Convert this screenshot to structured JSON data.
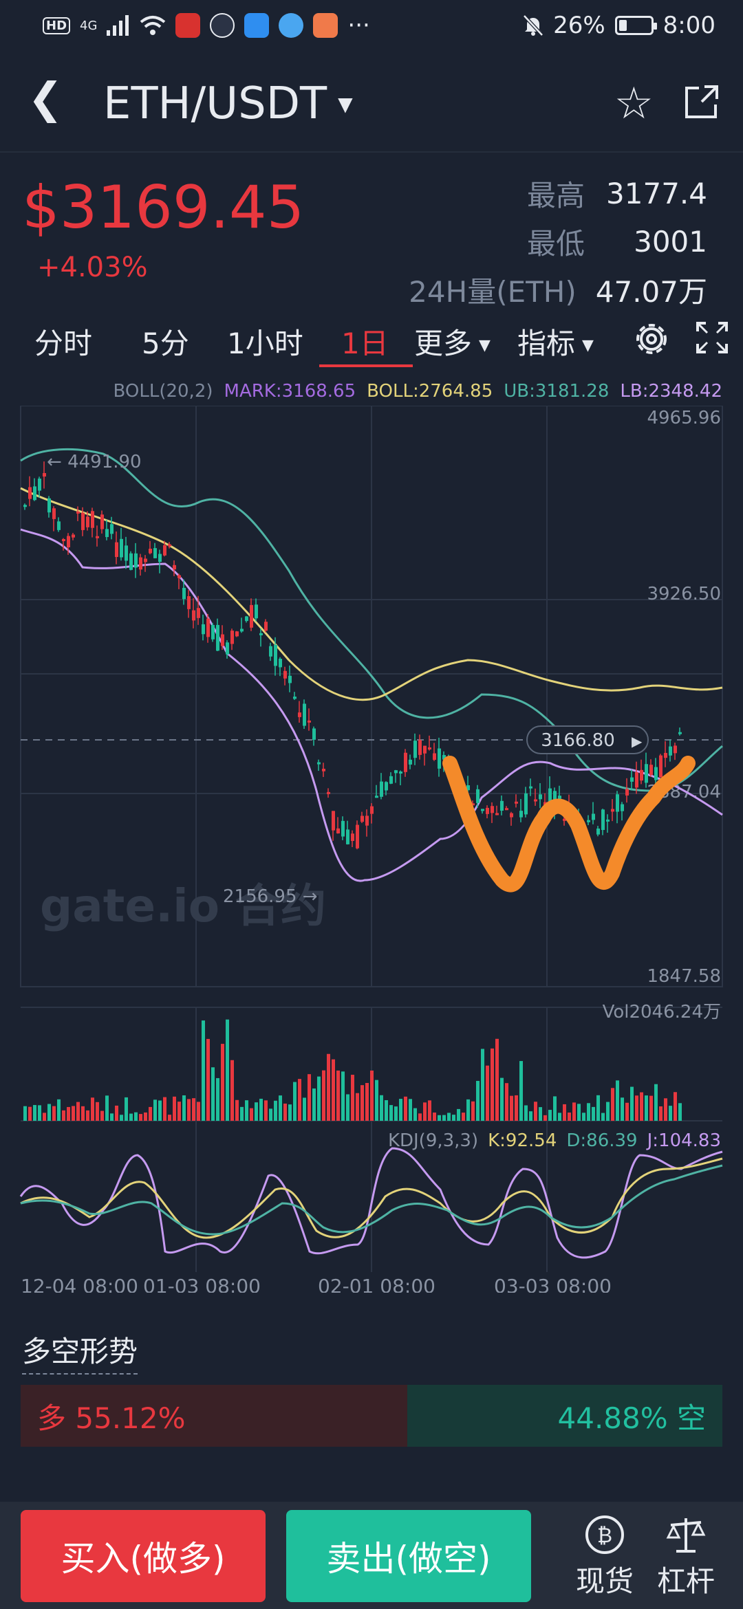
{
  "status": {
    "net": "4G",
    "hd": "HD",
    "battery": "26%",
    "battery_level": 0.26,
    "time": "8:00",
    "more": "···"
  },
  "header": {
    "pair": "ETH/USDT"
  },
  "ticker": {
    "price": "$3169.45",
    "change": "+4.03%",
    "high_label": "最高",
    "high": "3177.4",
    "low_label": "最低",
    "low": "3001",
    "vol_label": "24H量(ETH)",
    "vol": "47.07万"
  },
  "tabs": {
    "minute": "分时",
    "m5": "5分",
    "h1": "1小时",
    "d1": "1日",
    "more": "更多",
    "indicators": "指标"
  },
  "legend": {
    "boll": "BOLL(20,2)",
    "mark": "MARK:3168.65",
    "bollv": "BOLL:2764.85",
    "ub": "UB:3181.28",
    "lb": "LB:2348.42"
  },
  "chart_data": {
    "type": "candlestick",
    "y_ticks": [
      "4965.96",
      "3926.50",
      "2887.04",
      "1847.58"
    ],
    "ylim": [
      1847.58,
      4965.96
    ],
    "high_marker": "4491.90",
    "low_marker": "2156.95",
    "current_tag": "3166.80",
    "x_labels": [
      "12-04 08:00",
      "01-03 08:00",
      "02-01 08:00",
      "03-03 08:00"
    ],
    "vol_label": "Vol2046.24万",
    "kdj_label": "KDJ(9,3,3)",
    "kdj_k": "K:92.54",
    "kdj_d": "D:86.39",
    "kdj_j": "J:104.83",
    "watermark": "gate.io 合约"
  },
  "longshort": {
    "title": "多空形势",
    "long": "多 55.12%",
    "short": "44.88% 空",
    "long_ratio": 0.5512
  },
  "bottom": {
    "buy": "买入(做多)",
    "sell": "卖出(做空)",
    "spot": "现货",
    "margin": "杠杆"
  },
  "colors": {
    "up": "#e8383f",
    "down": "#1fbf9c",
    "mid": "#e3d37a",
    "upper": "#4fb3a4",
    "lower": "#c59af0",
    "annotation": "#f48a2a"
  }
}
